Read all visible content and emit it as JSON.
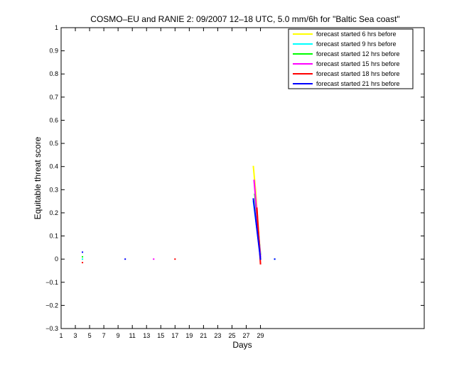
{
  "chart_data": {
    "type": "line",
    "title": "COSMO–EU and RANIE 2: 09/2007 12–18 UTC, 5.0 mm/6h for \"Baltic Sea coast\"",
    "xlabel": "Days",
    "ylabel": "Equitable threat score",
    "xlim": [
      1,
      52
    ],
    "ylim": [
      -0.3,
      1
    ],
    "xticks": [
      1,
      3,
      5,
      7,
      9,
      11,
      13,
      15,
      17,
      19,
      21,
      23,
      25,
      27,
      29
    ],
    "yticks": [
      -0.3,
      -0.2,
      -0.1,
      0,
      0.1,
      0.2,
      0.3,
      0.4,
      0.5,
      0.6,
      0.7,
      0.8,
      0.9,
      1
    ],
    "ytick_labels": [
      "−0.3",
      "−0.2",
      "−0.1",
      "0",
      "0.1",
      "0.2",
      "0.3",
      "0.4",
      "0.5",
      "0.6",
      "0.7",
      "0.8",
      "0.9",
      "1"
    ],
    "legend_position": "top-right",
    "grid": false,
    "series": [
      {
        "name": "forecast started 6 hrs before",
        "color": "#ffff00",
        "points": [
          {
            "x": 4,
            "y": 0.0
          },
          {
            "x": 28,
            "y": 0.4
          },
          {
            "x": 28.3,
            "y": 0.3
          },
          {
            "x": 29,
            "y": 0.0
          }
        ]
      },
      {
        "name": "forecast started 9 hrs before",
        "color": "#00ffff",
        "points": [
          {
            "x": 4,
            "y": 0.0
          },
          {
            "x": 28,
            "y": 0.25
          },
          {
            "x": 29,
            "y": 0.01
          },
          {
            "x": 31,
            "y": 0.0
          }
        ]
      },
      {
        "name": "forecast started 12 hrs before",
        "color": "#00ff00",
        "points": [
          {
            "x": 4,
            "y": 0.01
          },
          {
            "x": 28.2,
            "y": 0.28
          },
          {
            "x": 29,
            "y": 0.02
          }
        ]
      },
      {
        "name": "forecast started 15 hrs before",
        "color": "#ff00ff",
        "points": [
          {
            "x": 14,
            "y": 0.0
          },
          {
            "x": 28.1,
            "y": 0.34
          },
          {
            "x": 29,
            "y": 0.01
          }
        ]
      },
      {
        "name": "forecast started 18 hrs before",
        "color": "#ff0000",
        "points": [
          {
            "x": 4,
            "y": -0.015
          },
          {
            "x": 17,
            "y": 0.0
          },
          {
            "x": 28.5,
            "y": 0.22
          },
          {
            "x": 29,
            "y": -0.02
          }
        ]
      },
      {
        "name": "forecast started 21 hrs before",
        "color": "#0000ff",
        "points": [
          {
            "x": 4,
            "y": 0.03
          },
          {
            "x": 10,
            "y": 0.0
          },
          {
            "x": 28,
            "y": 0.26
          },
          {
            "x": 29,
            "y": 0.0
          },
          {
            "x": 31,
            "y": 0.0
          }
        ]
      }
    ]
  }
}
